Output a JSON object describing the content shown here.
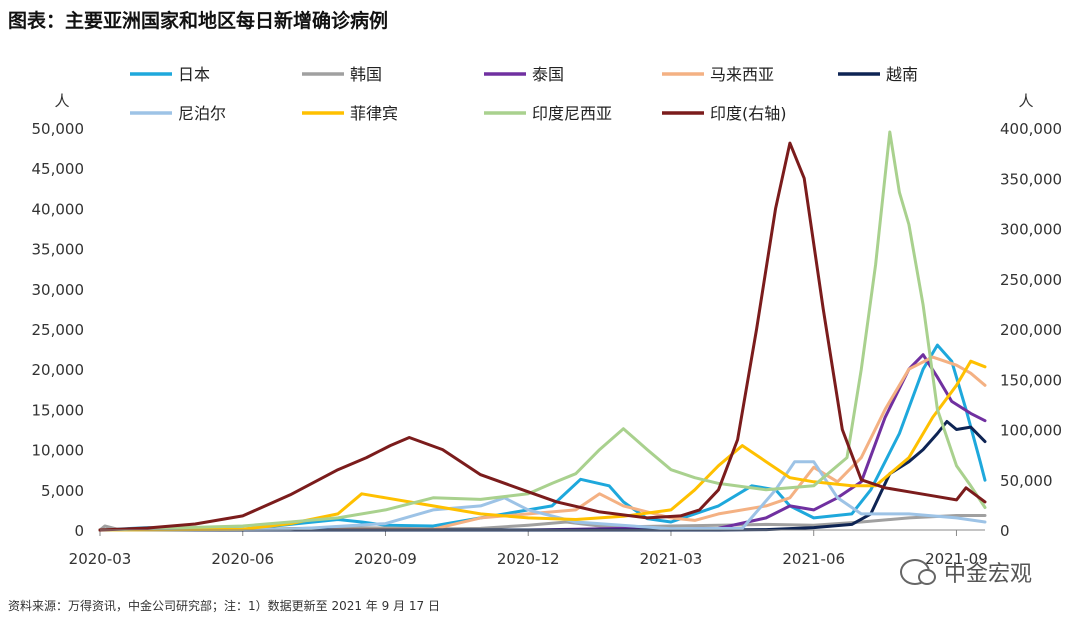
{
  "title": "图表：主要亚洲国家和地区每日新增确诊病例",
  "footer": "资料来源：万得资讯，中金公司研究部；注：1）数据更新至 2021 年 9 月 17 日",
  "watermark": "中金宏观",
  "chart_data": {
    "type": "line",
    "left_axis_unit": "人",
    "right_axis_unit": "人",
    "ylim_left": [
      0,
      50000
    ],
    "ylim_right": [
      0,
      400000
    ],
    "left_ticks": [
      "0",
      "5,000",
      "10,000",
      "15,000",
      "20,000",
      "25,000",
      "30,000",
      "35,000",
      "40,000",
      "45,000",
      "50,000"
    ],
    "right_ticks": [
      "0",
      "50,000",
      "100,000",
      "150,000",
      "200,000",
      "250,000",
      "300,000",
      "350,000",
      "400,000"
    ],
    "x_ticks": [
      "2020-03",
      "2020-06",
      "2020-09",
      "2020-12",
      "2021-03",
      "2021-06",
      "2021-09"
    ],
    "x_tick_months": [
      0,
      3,
      6,
      9,
      12,
      15,
      18
    ],
    "x_range_months": [
      0,
      18.6
    ],
    "legend_placement": "top",
    "series": [
      {
        "name": "日本",
        "color": "#1EA8DC",
        "axis": "left",
        "points": [
          [
            0,
            0
          ],
          [
            1,
            300
          ],
          [
            2,
            150
          ],
          [
            3,
            100
          ],
          [
            4,
            700
          ],
          [
            5,
            1300
          ],
          [
            5.5,
            1000
          ],
          [
            6,
            600
          ],
          [
            7,
            500
          ],
          [
            8,
            1500
          ],
          [
            9,
            2500
          ],
          [
            9.5,
            3000
          ],
          [
            10.1,
            6300
          ],
          [
            10.7,
            5500
          ],
          [
            11,
            3500
          ],
          [
            11.5,
            1400
          ],
          [
            12,
            1000
          ],
          [
            13,
            3000
          ],
          [
            13.7,
            5500
          ],
          [
            14.2,
            5000
          ],
          [
            14.5,
            3000
          ],
          [
            15,
            1500
          ],
          [
            15.8,
            2000
          ],
          [
            16.2,
            5000
          ],
          [
            16.8,
            12000
          ],
          [
            17.3,
            20000
          ],
          [
            17.6,
            23000
          ],
          [
            17.9,
            21000
          ],
          [
            18.2,
            15000
          ],
          [
            18.5,
            8500
          ],
          [
            18.6,
            6200
          ]
        ]
      },
      {
        "name": "韩国",
        "color": "#A0A0A0",
        "axis": "left",
        "points": [
          [
            0,
            0
          ],
          [
            0.1,
            500
          ],
          [
            0.4,
            50
          ],
          [
            2,
            30
          ],
          [
            3,
            50
          ],
          [
            5,
            300
          ],
          [
            6,
            250
          ],
          [
            7,
            120
          ],
          [
            8,
            200
          ],
          [
            9,
            600
          ],
          [
            9.8,
            1000
          ],
          [
            10.5,
            500
          ],
          [
            11,
            400
          ],
          [
            12,
            500
          ],
          [
            13,
            600
          ],
          [
            14,
            700
          ],
          [
            15,
            600
          ],
          [
            16,
            1000
          ],
          [
            17,
            1500
          ],
          [
            18,
            1800
          ],
          [
            18.6,
            1800
          ]
        ]
      },
      {
        "name": "泰国",
        "color": "#7030A0",
        "axis": "left",
        "points": [
          [
            0,
            0
          ],
          [
            9,
            0
          ],
          [
            10,
            100
          ],
          [
            11,
            200
          ],
          [
            12,
            100
          ],
          [
            13,
            200
          ],
          [
            14,
            1500
          ],
          [
            14.5,
            3000
          ],
          [
            15,
            2500
          ],
          [
            15.5,
            4000
          ],
          [
            16,
            6000
          ],
          [
            16.5,
            14000
          ],
          [
            17,
            20000
          ],
          [
            17.3,
            21800
          ],
          [
            17.6,
            19000
          ],
          [
            17.9,
            16000
          ],
          [
            18.3,
            14500
          ],
          [
            18.6,
            13600
          ]
        ]
      },
      {
        "name": "马来西亚",
        "color": "#F4B183",
        "axis": "left",
        "points": [
          [
            0,
            0
          ],
          [
            3,
            20
          ],
          [
            7,
            100
          ],
          [
            8,
            1500
          ],
          [
            9,
            2000
          ],
          [
            10,
            2500
          ],
          [
            10.5,
            4500
          ],
          [
            11,
            3000
          ],
          [
            12,
            1500
          ],
          [
            12.5,
            1200
          ],
          [
            13,
            2000
          ],
          [
            14,
            3000
          ],
          [
            14.5,
            4000
          ],
          [
            15,
            7800
          ],
          [
            15.5,
            6000
          ],
          [
            16,
            9000
          ],
          [
            16.5,
            15000
          ],
          [
            17,
            20000
          ],
          [
            17.5,
            21500
          ],
          [
            18,
            20500
          ],
          [
            18.3,
            19500
          ],
          [
            18.6,
            18000
          ]
        ]
      },
      {
        "name": "越南",
        "color": "#0E2454",
        "axis": "left",
        "points": [
          [
            0,
            0
          ],
          [
            13,
            0
          ],
          [
            14,
            50
          ],
          [
            15,
            300
          ],
          [
            15.8,
            700
          ],
          [
            16.2,
            2000
          ],
          [
            16.6,
            7000
          ],
          [
            17,
            8500
          ],
          [
            17.3,
            10000
          ],
          [
            17.6,
            12000
          ],
          [
            17.8,
            13500
          ],
          [
            18,
            12500
          ],
          [
            18.3,
            12800
          ],
          [
            18.6,
            11000
          ]
        ]
      },
      {
        "name": "尼泊尔",
        "color": "#9DC3E6",
        "axis": "left",
        "points": [
          [
            0,
            0
          ],
          [
            4,
            100
          ],
          [
            6,
            800
          ],
          [
            7,
            2500
          ],
          [
            8,
            3000
          ],
          [
            8.5,
            4000
          ],
          [
            9,
            2500
          ],
          [
            10,
            1000
          ],
          [
            12,
            150
          ],
          [
            13.5,
            200
          ],
          [
            14.2,
            5000
          ],
          [
            14.6,
            8500
          ],
          [
            15,
            8500
          ],
          [
            15.5,
            4000
          ],
          [
            16,
            2000
          ],
          [
            17,
            2000
          ],
          [
            18,
            1500
          ],
          [
            18.6,
            1000
          ]
        ]
      },
      {
        "name": "菲律宾",
        "color": "#FFC000",
        "axis": "left",
        "points": [
          [
            0,
            0
          ],
          [
            3,
            100
          ],
          [
            4,
            800
          ],
          [
            5,
            2000
          ],
          [
            5.5,
            4500
          ],
          [
            6,
            4000
          ],
          [
            6.5,
            3500
          ],
          [
            7,
            3000
          ],
          [
            8,
            2000
          ],
          [
            9,
            1500
          ],
          [
            10,
            1300
          ],
          [
            11,
            1700
          ],
          [
            12,
            2500
          ],
          [
            12.5,
            5000
          ],
          [
            13,
            8000
          ],
          [
            13.5,
            10500
          ],
          [
            14,
            8500
          ],
          [
            14.5,
            6500
          ],
          [
            15,
            6000
          ],
          [
            15.8,
            5500
          ],
          [
            16.3,
            5500
          ],
          [
            17,
            9000
          ],
          [
            17.5,
            14000
          ],
          [
            18,
            18000
          ],
          [
            18.3,
            21000
          ],
          [
            18.6,
            20300
          ]
        ]
      },
      {
        "name": "印度尼西亚",
        "color": "#A9D18E",
        "axis": "left",
        "points": [
          [
            0,
            0
          ],
          [
            3,
            500
          ],
          [
            4,
            1000
          ],
          [
            5,
            1500
          ],
          [
            6,
            2500
          ],
          [
            7,
            4000
          ],
          [
            8,
            3800
          ],
          [
            9,
            4500
          ],
          [
            9.5,
            5800
          ],
          [
            10,
            7000
          ],
          [
            10.5,
            10000
          ],
          [
            11,
            12600
          ],
          [
            11.5,
            10000
          ],
          [
            12,
            7500
          ],
          [
            12.5,
            6500
          ],
          [
            13,
            5800
          ],
          [
            14,
            5000
          ],
          [
            15,
            5500
          ],
          [
            15.7,
            9000
          ],
          [
            16,
            20000
          ],
          [
            16.3,
            33000
          ],
          [
            16.6,
            49500
          ],
          [
            16.8,
            42000
          ],
          [
            17,
            38000
          ],
          [
            17.3,
            28000
          ],
          [
            17.6,
            15000
          ],
          [
            18,
            8000
          ],
          [
            18.3,
            5500
          ],
          [
            18.6,
            2800
          ]
        ]
      },
      {
        "name": "印度(右轴)",
        "color": "#7B1C1C",
        "axis": "right",
        "points": [
          [
            0,
            0
          ],
          [
            1,
            2000
          ],
          [
            2,
            6000
          ],
          [
            3,
            14000
          ],
          [
            4,
            35000
          ],
          [
            5,
            60000
          ],
          [
            5.6,
            72000
          ],
          [
            6.1,
            84000
          ],
          [
            6.5,
            92000
          ],
          [
            7.2,
            80000
          ],
          [
            8,
            55000
          ],
          [
            9,
            38000
          ],
          [
            9.6,
            28000
          ],
          [
            10.5,
            18000
          ],
          [
            11.5,
            12000
          ],
          [
            12.2,
            14000
          ],
          [
            12.6,
            20000
          ],
          [
            13,
            40000
          ],
          [
            13.4,
            90000
          ],
          [
            13.8,
            200000
          ],
          [
            14.2,
            320000
          ],
          [
            14.5,
            385000
          ],
          [
            14.8,
            350000
          ],
          [
            15.2,
            220000
          ],
          [
            15.6,
            100000
          ],
          [
            16,
            50000
          ],
          [
            16.5,
            42000
          ],
          [
            17,
            38000
          ],
          [
            17.5,
            34000
          ],
          [
            18,
            30000
          ],
          [
            18.2,
            42000
          ],
          [
            18.6,
            28000
          ]
        ]
      }
    ]
  }
}
